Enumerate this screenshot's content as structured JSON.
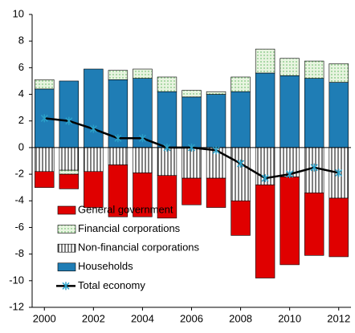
{
  "chart_data": {
    "type": "bar",
    "x": [
      2000,
      2001,
      2002,
      2003,
      2004,
      2005,
      2006,
      2007,
      2008,
      2009,
      2010,
      2011,
      2012
    ],
    "xlim": [
      1999.5,
      2012.5
    ],
    "xticks": [
      2000,
      2002,
      2004,
      2006,
      2008,
      2010,
      2012
    ],
    "ylim": [
      -12,
      10
    ],
    "yticks": [
      -12,
      -10,
      -8,
      -6,
      -4,
      -2,
      0,
      2,
      4,
      6,
      8,
      10
    ],
    "stacked": true,
    "series": [
      {
        "name": "Households",
        "color": "#1f7db5",
        "fill": "solid",
        "values": [
          4.4,
          5.0,
          5.9,
          5.1,
          5.2,
          4.2,
          3.8,
          4.0,
          4.2,
          5.6,
          5.4,
          5.2,
          4.9
        ]
      },
      {
        "name": "Non-financial corporations",
        "color": "#000000",
        "fill": "stripes",
        "values": [
          -1.8,
          -1.7,
          -1.8,
          -1.3,
          -1.9,
          -2.1,
          -2.3,
          -2.3,
          -4.0,
          -2.8,
          -2.2,
          -3.4,
          -3.8
        ]
      },
      {
        "name": "Financial corporations",
        "color": "#4caf50",
        "fill": "dots",
        "values": [
          0.7,
          -0.3,
          0.0,
          0.7,
          0.7,
          1.1,
          0.5,
          0.2,
          1.1,
          1.8,
          1.3,
          1.3,
          1.4
        ]
      },
      {
        "name": "General government",
        "color": "#e00000",
        "fill": "solid",
        "values": [
          -1.2,
          -1.1,
          -2.7,
          -3.9,
          -3.3,
          -3.2,
          -2.0,
          -2.2,
          -2.6,
          -7.0,
          -6.6,
          -4.7,
          -4.4
        ]
      },
      {
        "name": "Total economy",
        "type": "line",
        "color": "#000000",
        "marker_color": "#2aa0c8",
        "values": [
          2.2,
          2.0,
          1.4,
          0.7,
          0.7,
          0.0,
          0.0,
          -0.2,
          -1.2,
          -2.3,
          -2.0,
          -1.5,
          -1.9
        ]
      }
    ]
  }
}
